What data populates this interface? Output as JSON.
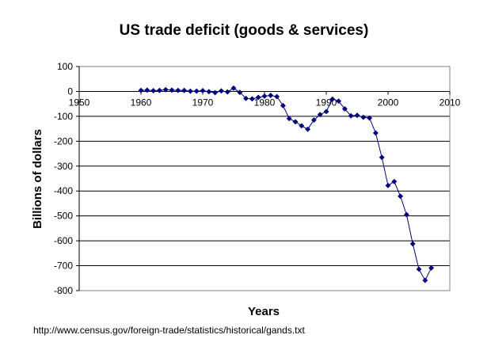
{
  "chart_data": {
    "type": "line",
    "title": "US trade deficit (goods & services)",
    "xlabel": "Years",
    "ylabel": "Billions of dollars",
    "xlim": [
      1950,
      2010
    ],
    "ylim": [
      -800,
      100
    ],
    "xticks": [
      1950,
      1960,
      1970,
      1980,
      1990,
      2000,
      2010
    ],
    "yticks": [
      100,
      0,
      -100,
      -200,
      -300,
      -400,
      -500,
      -600,
      -700,
      -800
    ],
    "grid": "horizontal",
    "legend": "none",
    "marker": "diamond",
    "color": "#000080",
    "series": [
      {
        "x": [
          1960,
          1961,
          1962,
          1963,
          1964,
          1965,
          1966,
          1967,
          1968,
          1969,
          1970,
          1971,
          1972,
          1973,
          1974,
          1975,
          1976,
          1977,
          1978,
          1979,
          1980,
          1981,
          1982,
          1983,
          1984,
          1985,
          1986,
          1987,
          1988,
          1989,
          1990,
          1991,
          1992,
          1993,
          1994,
          1995,
          1996,
          1997,
          1998,
          1999,
          2000,
          2001,
          2002,
          2003,
          2004,
          2005,
          2006,
          2007
        ],
        "y": [
          4,
          5,
          3,
          4,
          7,
          5,
          4,
          4,
          1,
          1,
          3,
          -1,
          -5,
          2,
          -2,
          13,
          -4,
          -28,
          -30,
          -24,
          -19,
          -16,
          -21,
          -57,
          -109,
          -122,
          -138,
          -152,
          -115,
          -93,
          -81,
          -31,
          -39,
          -70,
          -98,
          -96,
          -104,
          -107,
          -167,
          -265,
          -378,
          -362,
          -421,
          -495,
          -612,
          -714,
          -759,
          -709
        ]
      }
    ]
  },
  "source": "http://www.census.gov/foreign-trade/statistics/historical/gands.txt"
}
